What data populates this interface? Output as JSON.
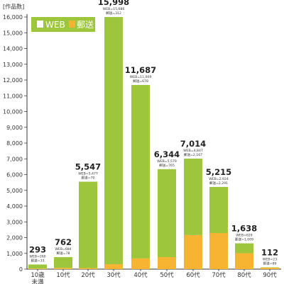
{
  "chart_data": {
    "type": "bar",
    "stacked": true,
    "ylabel": "[作品数]",
    "ylim": [
      0,
      16000
    ],
    "yticks": [
      0,
      1000,
      2000,
      3000,
      4000,
      5000,
      6000,
      7000,
      8000,
      9000,
      10000,
      11000,
      12000,
      13000,
      14000,
      15000,
      16000
    ],
    "ytick_labels": [
      "0",
      "1,000",
      "2,000",
      "3,000",
      "4,000",
      "5,000",
      "6,000",
      "7,000",
      "8,000",
      "9,000",
      "10,000",
      "11,000",
      "12,000",
      "13,000",
      "14,000",
      "15,000",
      "16,000"
    ],
    "categories": [
      "10歳\n未満",
      "10代",
      "20代",
      "30代",
      "40代",
      "50代",
      "60代",
      "70代",
      "80代",
      "90代"
    ],
    "series": [
      {
        "name": "WEB",
        "color": "#9dc63c",
        "values": [
          260,
          684,
          5477,
          15686,
          11009,
          5579,
          4847,
          2924,
          629,
          23
        ]
      },
      {
        "name": "郵送",
        "color": "#f6b432",
        "values": [
          33,
          78,
          70,
          312,
          678,
          765,
          2167,
          2291,
          1009,
          89
        ]
      }
    ],
    "totals": [
      "293",
      "762",
      "5,547",
      "15,998",
      "11,687",
      "6,344",
      "7,014",
      "5,215",
      "1,638",
      "112"
    ],
    "breakdown_labels": [
      [
        "WEB=260",
        "郵送=33"
      ],
      [
        "WEB=684",
        "郵送=78"
      ],
      [
        "WEB=5,477",
        "郵送=70"
      ],
      [
        "WEB=15,686",
        "郵送=312"
      ],
      [
        "WEB=11,009",
        "郵送=678"
      ],
      [
        "WEB=5,579",
        "郵送=765"
      ],
      [
        "WEB=4,847",
        "郵送=2,167"
      ],
      [
        "WEB=2,924",
        "郵送=2,291"
      ],
      [
        "WEB=629",
        "郵送=1,009"
      ],
      [
        "WEB=23",
        "郵送=89"
      ]
    ],
    "legend": {
      "position": "top-left",
      "background": "#9dc63c"
    },
    "grid": false
  }
}
